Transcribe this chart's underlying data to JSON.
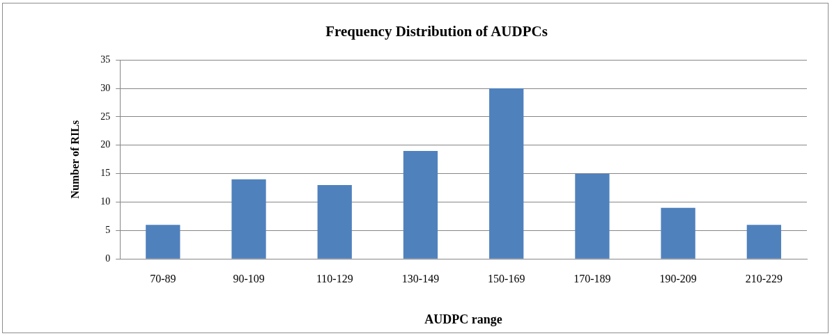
{
  "chart_data": {
    "type": "bar",
    "title": "Frequency Distribution of AUDPCs",
    "xlabel": "AUDPC range",
    "ylabel": "Number of RILs",
    "categories": [
      "70-89",
      "90-109",
      "110-129",
      "130-149",
      "150-169",
      "170-189",
      "190-209",
      "210-229"
    ],
    "values": [
      6,
      14,
      13,
      19,
      30,
      15,
      9,
      6
    ],
    "color": "#4f81bd",
    "ylim": [
      0,
      35
    ],
    "yticks": [
      0,
      5,
      10,
      15,
      20,
      25,
      30,
      35
    ],
    "grid": "y"
  }
}
